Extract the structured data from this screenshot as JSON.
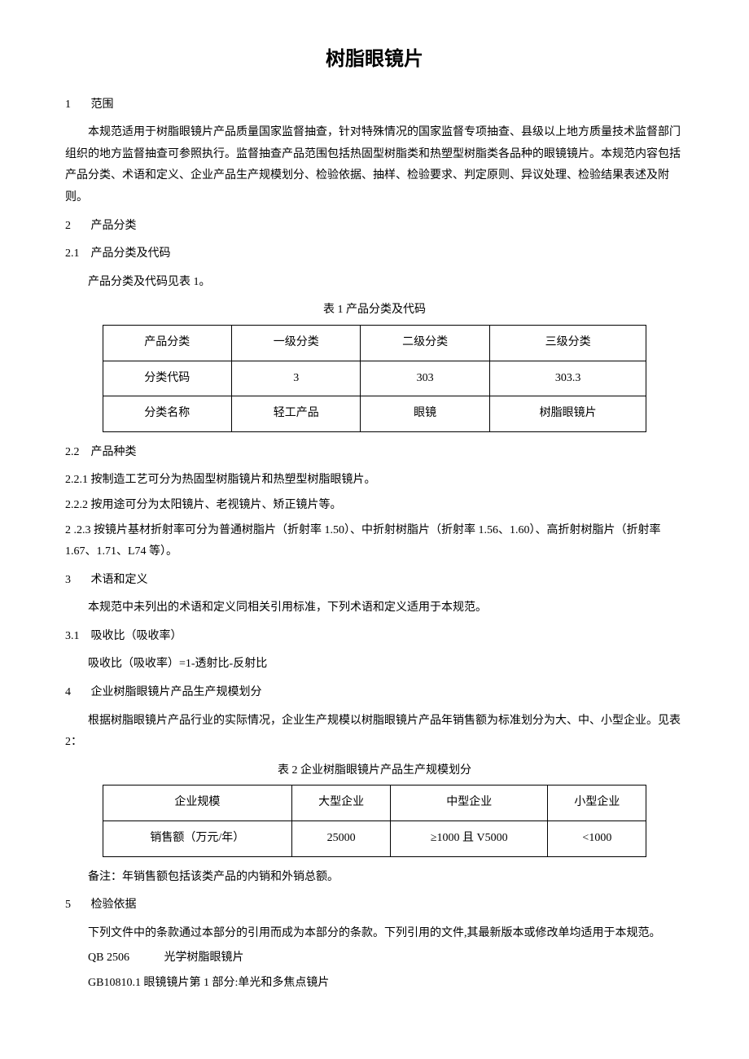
{
  "title": "树脂眼镜片",
  "s1": {
    "num": "1",
    "heading": "范围",
    "p1": "本规范适用于树脂眼镜片产品质量国家监督抽查，针对特殊情况的国家监督专项抽查、县级以上地方质量技术监督部门组织的地方监督抽查可参照执行。监督抽查产品范围包括热固型树脂类和热塑型树脂类各品种的眼镜镜片。本规范内容包括产品分类、术语和定义、企业产品生产规模划分、检验依据、抽样、检验要求、判定原则、异议处理、检验结果表述及附则。"
  },
  "s2": {
    "num": "2",
    "heading": "产品分类",
    "s2_1": {
      "num": "2.1",
      "heading": "产品分类及代码",
      "p1": "产品分类及代码见表 1。"
    },
    "table1": {
      "caption": "表 1 产品分类及代码",
      "r0": {
        "c0": "产品分类",
        "c1": "一级分类",
        "c2": "二级分类",
        "c3": "三级分类"
      },
      "r1": {
        "c0": "分类代码",
        "c1": "3",
        "c2": "303",
        "c3": "303.3"
      },
      "r2": {
        "c0": "分类名称",
        "c1": "轻工产品",
        "c2": "眼镜",
        "c3": "树脂眼镜片"
      }
    },
    "s2_2": {
      "num": "2.2",
      "heading": "产品种类",
      "p1": "2.2.1 按制造工艺可分为热固型树脂镜片和热塑型树脂眼镜片。",
      "p2": "2.2.2 按用途可分为太阳镜片、老视镜片、矫正镜片等。",
      "p3": "2 .2.3 按镜片基材折射率可分为普通树脂片（折射率 1.50）、中折射树脂片（折射率 1.56、1.60）、高折射树脂片（折射率 1.67、1.71、L74 等）。"
    }
  },
  "s3": {
    "num": "3",
    "heading": "术语和定义",
    "p1": "本规范中未列出的术语和定义同相关引用标准，下列术语和定义适用于本规范。",
    "s3_1": {
      "num": "3.1",
      "heading": "吸收比（吸收率）",
      "p1": "吸收比（吸收率）=1-透射比-反射比"
    }
  },
  "s4": {
    "num": "4",
    "heading": "企业树脂眼镜片产品生产规模划分",
    "p1": "根据树脂眼镜片产品行业的实际情况，企业生产规模以树脂眼镜片产品年销售额为标准划分为大、中、小型企业。见表 2：",
    "table2": {
      "caption": "表 2 企业树脂眼镜片产品生产规模划分",
      "r0": {
        "c0": "企业规模",
        "c1": "大型企业",
        "c2": "中型企业",
        "c3": "小型企业"
      },
      "r1": {
        "c0": "销售额（万元/年）",
        "c1": "25000",
        "c2": "≥1000 且 V5000",
        "c3": "<1000"
      }
    },
    "note": "备注：年销售额包括该类产品的内销和外销总额。"
  },
  "s5": {
    "num": "5",
    "heading": "检验依据",
    "p1": "下列文件中的条款通过本部分的引用而成为本部分的条款。下列引用的文件,其最新版本或修改单均适用于本规范。",
    "ref1": {
      "code": "QB 2506",
      "title": "光学树脂眼镜片"
    },
    "ref2": {
      "code": "GB10810.1",
      "title": "眼镜镜片第 1 部分:单光和多焦点镜片"
    }
  }
}
